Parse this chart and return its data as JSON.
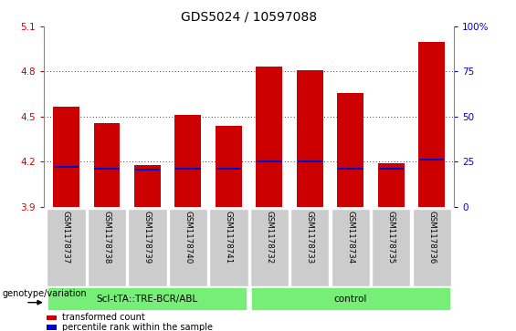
{
  "title": "GDS5024 / 10597088",
  "samples": [
    "GSM1178737",
    "GSM1178738",
    "GSM1178739",
    "GSM1178740",
    "GSM1178741",
    "GSM1178732",
    "GSM1178733",
    "GSM1178734",
    "GSM1178735",
    "GSM1178736"
  ],
  "transformed_count": [
    4.565,
    4.455,
    4.18,
    4.51,
    4.44,
    4.835,
    4.81,
    4.655,
    4.19,
    5.0
  ],
  "percentile_rank": [
    4.165,
    4.155,
    4.145,
    4.155,
    4.155,
    4.2,
    4.205,
    4.155,
    4.155,
    4.215
  ],
  "bar_bottom": 3.9,
  "y_min": 3.9,
  "y_max": 5.1,
  "y_ticks_left": [
    3.9,
    4.2,
    4.5,
    4.8,
    5.1
  ],
  "y_ticks_right": [
    0,
    25,
    50,
    75,
    100
  ],
  "bar_color_red": "#cc0000",
  "bar_color_blue": "#0000cc",
  "group1_label": "ScI-tTA::TRE-BCR/ABL",
  "group2_label": "control",
  "group_bg_color": "#77ee77",
  "sample_bg_color": "#cccccc",
  "xlabel_text": "genotype/variation",
  "legend_red": "transformed count",
  "legend_blue": "percentile rank within the sample",
  "left_tick_color": "#cc0000",
  "right_tick_color": "#0000cc",
  "title_fontsize": 10,
  "tick_fontsize": 7.5,
  "bar_width": 0.65
}
